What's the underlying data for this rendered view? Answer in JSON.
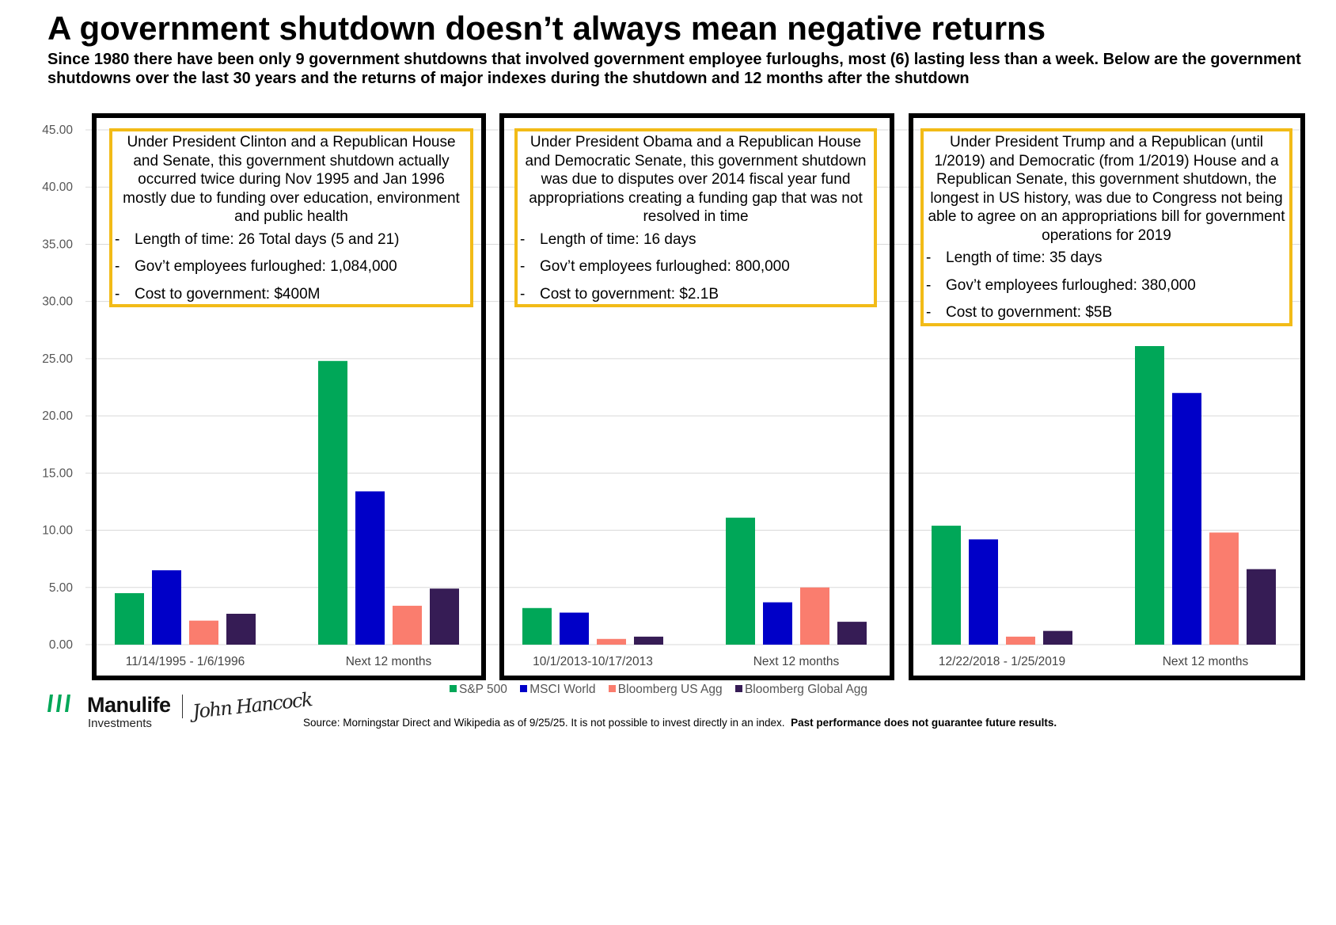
{
  "title": "A government shutdown doesn’t always mean negative returns",
  "subtitle": "Since 1980 there have been only 9 government shutdowns that involved government employee furloughs, most (6) lasting less than a week.  Below are the government shutdowns over the last 30 years and the returns of major indexes during the shutdown and 12 months after the shutdown",
  "colors": {
    "sp500": "#00a758",
    "msci": "#0000c8",
    "agg": "#fa7d6e",
    "global_agg": "#361c55",
    "panel_border": "#000000",
    "annotation_border": "#f2bb17",
    "grid": "#d9d9d9"
  },
  "chart_data": {
    "type": "bar",
    "ylim": [
      0,
      45
    ],
    "yticks": [
      "0.00",
      "5.00",
      "10.00",
      "15.00",
      "20.00",
      "25.00",
      "30.00",
      "35.00",
      "40.00",
      "45.00"
    ],
    "legend": [
      "S&P 500",
      "MSCI World",
      "Bloomberg US Agg",
      "Bloomberg Global Agg"
    ],
    "panels": [
      {
        "categories": [
          "11/14/1995 - 1/6/1996",
          "Next 12 months"
        ],
        "series": [
          {
            "name": "S&P 500",
            "values": [
              4.5,
              24.8
            ]
          },
          {
            "name": "MSCI World",
            "values": [
              6.5,
              13.4
            ]
          },
          {
            "name": "Bloomberg US Agg",
            "values": [
              2.1,
              3.4
            ]
          },
          {
            "name": "Bloomberg Global Agg",
            "values": [
              2.7,
              4.9
            ]
          }
        ]
      },
      {
        "categories": [
          "10/1/2013-10/17/2013",
          "Next 12 months"
        ],
        "series": [
          {
            "name": "S&P 500",
            "values": [
              3.2,
              11.1
            ]
          },
          {
            "name": "MSCI World",
            "values": [
              2.8,
              3.7
            ]
          },
          {
            "name": "Bloomberg US Agg",
            "values": [
              0.5,
              5.0
            ]
          },
          {
            "name": "Bloomberg Global Agg",
            "values": [
              0.7,
              2.0
            ]
          }
        ]
      },
      {
        "categories": [
          "12/22/2018 - 1/25/2019",
          "Next 12 months"
        ],
        "series": [
          {
            "name": "S&P 500",
            "values": [
              10.4,
              26.1
            ]
          },
          {
            "name": "MSCI World",
            "values": [
              9.2,
              22.0
            ]
          },
          {
            "name": "Bloomberg US Agg",
            "values": [
              0.7,
              9.8
            ]
          },
          {
            "name": "Bloomberg Global Agg",
            "values": [
              1.2,
              6.6
            ]
          }
        ]
      }
    ]
  },
  "annotations": [
    {
      "intro": "Under President Clinton and a Republican House and Senate, this government shutdown actually occurred twice during Nov 1995 and Jan 1996 mostly due to funding over education, environment and public health",
      "bullets": [
        "Length of time: 26 Total days (5 and 21)",
        "Gov’t employees furloughed: 1,084,000",
        "Cost to government: $400M"
      ]
    },
    {
      "intro": "Under President Obama and a Republican House and Democratic Senate, this government shutdown was due to disputes over 2014 fiscal year fund appropriations creating a funding gap that was not resolved in time",
      "bullets": [
        "Length of time: 16 days",
        "Gov’t employees furloughed: 800,000",
        "Cost to government: $2.1B"
      ]
    },
    {
      "intro": "Under President Trump and a Republican (until 1/2019) and Democratic (from 1/2019) House and a Republican Senate, this government shutdown, the longest in US history, was due to Congress not being able to agree on an appropriations bill for government operations for 2019",
      "bullets": [
        "Length of time: 35 days",
        "Gov’t employees furloughed: 380,000",
        "Cost to government: $5B"
      ]
    }
  ],
  "footer": {
    "brand_name": "Manulife",
    "brand_sub": "Investments",
    "brand_signature": "John Hancock",
    "source_text": "Source: Morningstar Direct and Wikipedia as of 9/25/25.  It is not possible to invest directly in an index.",
    "source_bold": "Past performance does not guarantee future results."
  }
}
